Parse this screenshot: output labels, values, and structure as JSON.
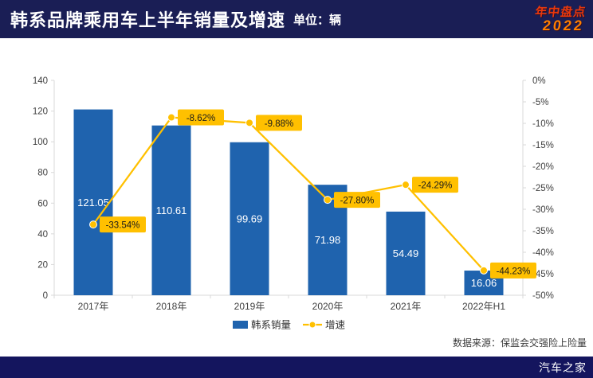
{
  "header": {
    "title": "韩系品牌乘用车上半年销量及增速",
    "unit": "单位：辆",
    "badge": {
      "line1": "年中盘点",
      "line2": "2022"
    }
  },
  "chart_data": {
    "type": "bar",
    "subtype": "bar-line-combo",
    "title": "韩系品牌乘用车上半年销量及增速",
    "unit": "辆",
    "categories": [
      "2017年",
      "2018年",
      "2019年",
      "2020年",
      "2021年",
      "2022年H1"
    ],
    "series": [
      {
        "name": "韩系销量",
        "type": "bar",
        "color": "#1f63ae",
        "axis": "left",
        "values": [
          121.05,
          110.61,
          99.69,
          71.98,
          54.49,
          16.06
        ]
      },
      {
        "name": "增速",
        "type": "line",
        "color": "#ffc000",
        "axis": "right",
        "unit": "%",
        "values": [
          -33.54,
          -8.62,
          -9.88,
          -27.8,
          -24.29,
          -44.23
        ]
      }
    ],
    "left_axis": {
      "min": 0,
      "max": 140,
      "ticks": [
        0,
        20,
        40,
        60,
        80,
        100,
        120,
        140
      ]
    },
    "right_axis": {
      "min": -50,
      "max": 0,
      "ticks": [
        0,
        -5,
        -10,
        -15,
        -20,
        -25,
        -30,
        -35,
        -40,
        -45,
        -50
      ],
      "format": "percent"
    },
    "legend": {
      "position": "bottom",
      "items": [
        "韩系销量",
        "增速"
      ]
    },
    "grid": false,
    "source": "数据来源：保监会交强险上险量"
  },
  "footer": {
    "brand": "汽车之家"
  },
  "colors": {
    "header_bg": "#1a1e55",
    "footer_bg": "#14155e",
    "bar": "#1f63ae",
    "line": "#ffc000",
    "data_label_bg": "#ffc000",
    "data_label_text": "#1a1a1a",
    "axis_line": "#d9d9d9",
    "axis_text": "#404040",
    "bar_value_text": "#ffffff",
    "badge_red": "#e8380d",
    "badge_orange": "#ff7e00"
  }
}
